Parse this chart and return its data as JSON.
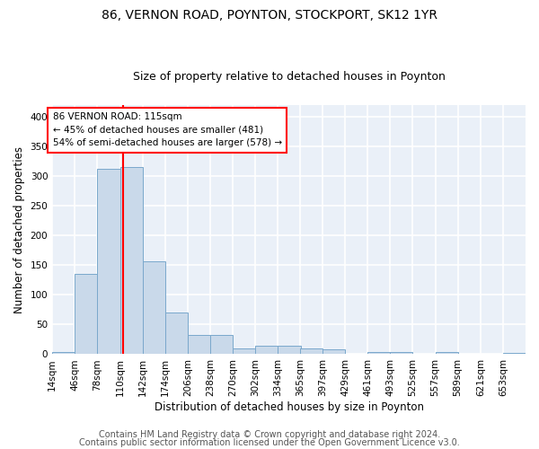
{
  "title1": "86, VERNON ROAD, POYNTON, STOCKPORT, SK12 1YR",
  "title2": "Size of property relative to detached houses in Poynton",
  "xlabel": "Distribution of detached houses by size in Poynton",
  "ylabel": "Number of detached properties",
  "footer1": "Contains HM Land Registry data © Crown copyright and database right 2024.",
  "footer2": "Contains public sector information licensed under the Open Government Licence v3.0.",
  "annotation_line1": "86 VERNON ROAD: 115sqm",
  "annotation_line2": "← 45% of detached houses are smaller (481)",
  "annotation_line3": "54% of semi-detached houses are larger (578) →",
  "bar_color": "#c9d9ea",
  "bar_edge_color": "#7aa8cc",
  "red_line_x": 115,
  "annotation_box_color": "white",
  "annotation_box_edge_color": "red",
  "bins": [
    14,
    46,
    78,
    110,
    142,
    174,
    206,
    238,
    270,
    302,
    334,
    365,
    397,
    429,
    461,
    493,
    525,
    557,
    589,
    621,
    653
  ],
  "counts": [
    4,
    136,
    312,
    316,
    157,
    70,
    32,
    32,
    10,
    14,
    14,
    10,
    8,
    0,
    4,
    3,
    0,
    3,
    0,
    0,
    2
  ],
  "ylim": [
    0,
    420
  ],
  "yticks": [
    0,
    50,
    100,
    150,
    200,
    250,
    300,
    350,
    400
  ],
  "background_color": "#eaf0f8",
  "grid_color": "white",
  "title1_fontsize": 10,
  "title2_fontsize": 9,
  "axis_label_fontsize": 8.5,
  "tick_fontsize": 7.5,
  "footer_fontsize": 7
}
